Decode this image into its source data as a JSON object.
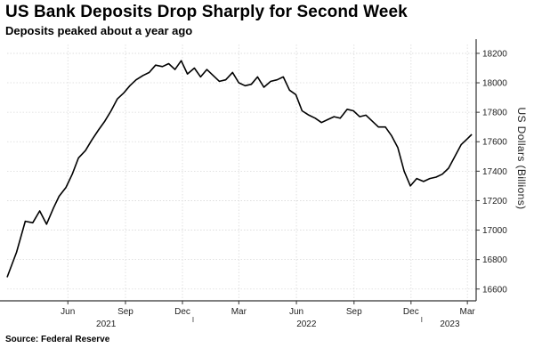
{
  "header": {
    "title": "US Bank Deposits Drop Sharply for Second Week",
    "subtitle": "Deposits peaked about a year ago"
  },
  "footer": {
    "source": "Source: Federal Reserve"
  },
  "chart_data": {
    "type": "line",
    "title": "US Bank Deposits Drop Sharply for Second Week",
    "subtitle": "Deposits peaked about a year ago",
    "xlabel": "",
    "ylabel": "US Dollars (Billions)",
    "ylim": [
      16520,
      18260
    ],
    "xlim": [
      "2021-03-10",
      "2023-03-29"
    ],
    "y_ticks": [
      16600,
      16800,
      17000,
      17200,
      17400,
      17600,
      17800,
      18000,
      18200
    ],
    "x_ticks": [
      {
        "date": "2021-06-15",
        "label": "Jun"
      },
      {
        "date": "2021-09-15",
        "label": "Sep"
      },
      {
        "date": "2021-12-15",
        "label": "Dec"
      },
      {
        "date": "2022-03-15",
        "label": "Mar"
      },
      {
        "date": "2022-06-15",
        "label": "Jun"
      },
      {
        "date": "2022-09-15",
        "label": "Sep"
      },
      {
        "date": "2022-12-15",
        "label": "Dec"
      },
      {
        "date": "2023-03-15",
        "label": "Mar"
      }
    ],
    "year_labels": [
      {
        "date": "2021-08-15",
        "label": "2021"
      },
      {
        "date": "2022-07-01",
        "label": "2022"
      },
      {
        "date": "2023-02-15",
        "label": "2023"
      }
    ],
    "grid": true,
    "y_axis_position": "right",
    "line_color": "#000000",
    "series": [
      {
        "x": [
          "2021-03-10",
          "2021-03-25",
          "2021-04-08",
          "2021-04-20",
          "2021-05-01",
          "2021-05-12",
          "2021-05-23",
          "2021-06-01",
          "2021-06-12",
          "2021-06-22",
          "2021-07-02",
          "2021-07-13",
          "2021-07-23",
          "2021-08-03",
          "2021-08-13",
          "2021-08-23",
          "2021-09-02",
          "2021-09-12",
          "2021-09-22",
          "2021-10-02",
          "2021-10-13",
          "2021-10-23",
          "2021-11-02",
          "2021-11-13",
          "2021-11-23",
          "2021-12-03",
          "2021-12-13",
          "2021-12-23",
          "2022-01-03",
          "2022-01-13",
          "2022-01-23",
          "2022-02-02",
          "2022-02-12",
          "2022-02-22",
          "2022-03-05",
          "2022-03-15",
          "2022-03-25",
          "2022-04-04",
          "2022-04-14",
          "2022-04-24",
          "2022-05-05",
          "2022-05-15",
          "2022-05-25",
          "2022-06-04",
          "2022-06-14",
          "2022-06-24",
          "2022-07-05",
          "2022-07-15",
          "2022-07-25",
          "2022-08-04",
          "2022-08-14",
          "2022-08-24",
          "2022-09-04",
          "2022-09-14",
          "2022-09-24",
          "2022-10-04",
          "2022-10-14",
          "2022-10-24",
          "2022-11-04",
          "2022-11-14",
          "2022-11-24",
          "2022-12-04",
          "2022-12-14",
          "2022-12-24",
          "2023-01-04",
          "2023-01-14",
          "2023-01-24",
          "2023-02-03",
          "2023-02-13",
          "2023-02-23",
          "2023-03-05",
          "2023-03-15",
          "2023-03-22"
        ],
        "y": [
          16680,
          16850,
          17060,
          17050,
          17130,
          17040,
          17150,
          17230,
          17290,
          17380,
          17490,
          17540,
          17610,
          17680,
          17740,
          17810,
          17890,
          17930,
          17980,
          18020,
          18050,
          18070,
          18120,
          18110,
          18130,
          18090,
          18150,
          18060,
          18100,
          18040,
          18090,
          18050,
          18010,
          18020,
          18070,
          18000,
          17980,
          17990,
          18040,
          17970,
          18010,
          18020,
          18040,
          17950,
          17920,
          17810,
          17780,
          17760,
          17730,
          17750,
          17770,
          17760,
          17820,
          17810,
          17770,
          17780,
          17740,
          17700,
          17700,
          17640,
          17560,
          17400,
          17300,
          17350,
          17330,
          17350,
          17360,
          17380,
          17420,
          17500,
          17580,
          17620,
          17650
        ],
        "_note_ignore": ""
      }
    ]
  }
}
